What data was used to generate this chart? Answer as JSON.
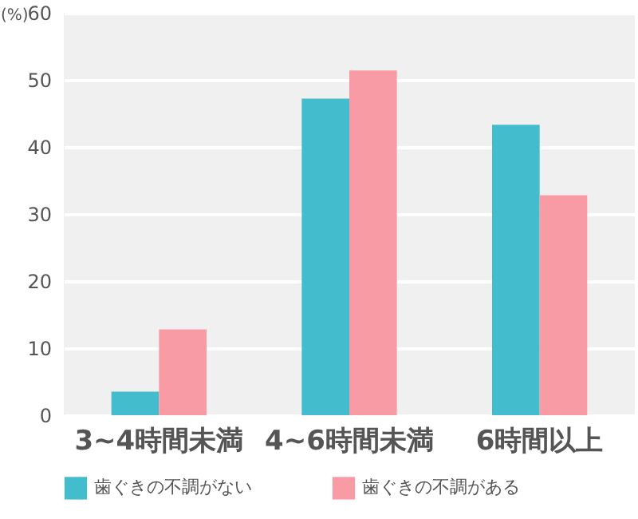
{
  "chart_data": {
    "type": "bar",
    "ylabel": "(%)",
    "categories": [
      "3~4時間未満",
      "4~6時間未満",
      "6時間以上"
    ],
    "series": [
      {
        "name": "歯ぐきの不調がない",
        "color": "#43bccd",
        "values": [
          3.5,
          47.2,
          43.3
        ]
      },
      {
        "name": "歯ぐきの不調がある",
        "color": "#f99ba5",
        "values": [
          12.8,
          51.4,
          32.8
        ]
      }
    ],
    "ylim": [
      0,
      60
    ],
    "yticks": [
      0,
      10,
      20,
      30,
      40,
      50,
      60
    ],
    "grid": "y",
    "legend": "bottom"
  }
}
